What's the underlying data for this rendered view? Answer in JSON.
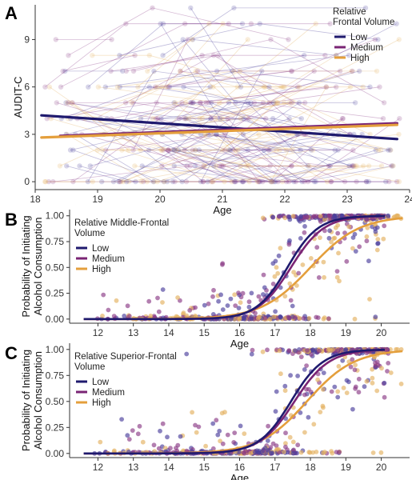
{
  "chart_data": [
    {
      "panel": "A",
      "type": "line",
      "xlabel": "Age",
      "ylabel": "AUDIT-C",
      "xlim": [
        18.0,
        24.0
      ],
      "ylim": [
        -0.5,
        11.2
      ],
      "xticks": [
        "18",
        "19",
        "20",
        "21",
        "22",
        "23",
        "24"
      ],
      "yticks": [
        "0",
        "3",
        "6",
        "9"
      ],
      "legend": {
        "title": [
          "Relative",
          "Frontal Volume"
        ],
        "placement": "top-right",
        "entries": [
          "Low",
          "Medium",
          "High"
        ]
      },
      "colors": {
        "Low": "#1f1a6e",
        "Medium": "#7a2474",
        "High": "#e49f3c"
      },
      "series": [
        {
          "name": "Low",
          "x": [
            18.1,
            23.8
          ],
          "y": [
            4.2,
            2.7
          ]
        },
        {
          "name": "Medium",
          "x": [
            18.4,
            23.8
          ],
          "y": [
            2.9,
            3.7
          ]
        },
        {
          "name": "High",
          "x": [
            18.1,
            23.8
          ],
          "y": [
            2.8,
            3.6
          ]
        }
      ],
      "raw_points_note_levels": [
        0,
        1,
        2,
        3,
        4,
        5,
        6,
        7,
        8,
        9,
        10,
        11
      ],
      "grid": false
    },
    {
      "panel": "B",
      "type": "scatter",
      "xlabel": "Age",
      "ylabel": [
        "Probability of Initiating",
        "Alcohol Consumption"
      ],
      "xlim": [
        11.2,
        20.8
      ],
      "ylim": [
        -0.04,
        1.06
      ],
      "xticks": [
        "12",
        "13",
        "14",
        "15",
        "16",
        "17",
        "18",
        "19",
        "20"
      ],
      "yticks": [
        "0.00",
        "0.25",
        "0.50",
        "0.75",
        "1.00"
      ],
      "legend": {
        "title": [
          "Relative Middle-Frontal",
          "Volume"
        ],
        "placement": "top-left",
        "entries": [
          "Low",
          "Medium",
          "High"
        ]
      },
      "curves": [
        {
          "name": "Low",
          "midpoint": 17.35,
          "slope": 2.3,
          "x_range": [
            11.6,
            20.1
          ]
        },
        {
          "name": "Medium",
          "midpoint": 17.45,
          "slope": 2.15,
          "x_range": [
            11.6,
            20.1
          ]
        },
        {
          "name": "High",
          "midpoint": 18.0,
          "slope": 1.45,
          "x_range": [
            11.6,
            20.6
          ]
        }
      ],
      "grid": false
    },
    {
      "panel": "C",
      "type": "scatter",
      "xlabel": "Age",
      "ylabel": [
        "Probability of Initiating",
        "Alcohol Consumption"
      ],
      "xlim": [
        11.2,
        20.8
      ],
      "ylim": [
        -0.04,
        1.06
      ],
      "xticks": [
        "12",
        "13",
        "14",
        "15",
        "16",
        "17",
        "18",
        "19",
        "20"
      ],
      "yticks": [
        "0.00",
        "0.25",
        "0.50",
        "0.75",
        "1.00"
      ],
      "legend": {
        "title": [
          "Relative Superior-Frontal",
          "Volume"
        ],
        "placement": "top-left",
        "entries": [
          "Low",
          "Medium",
          "High"
        ]
      },
      "curves": [
        {
          "name": "Low",
          "midpoint": 17.45,
          "slope": 2.2,
          "x_range": [
            11.6,
            20.1
          ]
        },
        {
          "name": "Medium",
          "midpoint": 17.55,
          "slope": 2.05,
          "x_range": [
            11.6,
            20.1
          ]
        },
        {
          "name": "High",
          "midpoint": 17.9,
          "slope": 1.5,
          "x_range": [
            11.6,
            20.6
          ]
        }
      ],
      "grid": false
    }
  ]
}
